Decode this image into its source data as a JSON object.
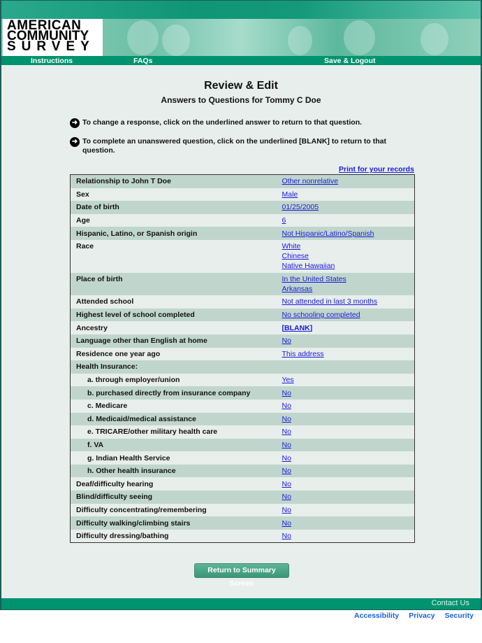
{
  "header": {
    "logo_lines": [
      "AMERICAN",
      "COMMUNITY",
      "SURVEY"
    ],
    "nav": [
      "Instructions",
      "FAQs",
      "Save & Logout"
    ]
  },
  "page": {
    "title": "Review & Edit",
    "subtitle": "Answers to Questions for Tommy C Doe",
    "instructions": [
      "To change a response, click on the underlined answer to return to that question.",
      "To complete an unanswered question, click on the underlined [BLANK] to return to that question."
    ],
    "print_link": "Print for your records"
  },
  "rows": [
    {
      "q": "Relationship to John T Doe",
      "a": [
        "Other nonrelative"
      ]
    },
    {
      "q": "Sex",
      "a": [
        "Male"
      ]
    },
    {
      "q": "Date of birth",
      "a": [
        "01/25/2005"
      ]
    },
    {
      "q": "Age",
      "a": [
        "6"
      ]
    },
    {
      "q": "Hispanic, Latino, or Spanish origin",
      "a": [
        "Not Hispanic/Latino/Spanish"
      ]
    },
    {
      "q": "Race",
      "a": [
        "White",
        "Chinese",
        "Native Hawaiian"
      ]
    },
    {
      "q": "Place of birth",
      "a": [
        "In the United States",
        "Arkansas"
      ]
    },
    {
      "q": "Attended school",
      "a": [
        "Not attended in last 3 months"
      ]
    },
    {
      "q": "Highest level of school completed",
      "a": [
        "No schooling completed"
      ]
    },
    {
      "q": "Ancestry",
      "a": [
        "[BLANK]"
      ],
      "blank": true
    },
    {
      "q": "Language other than English at home",
      "a": [
        "No"
      ]
    },
    {
      "q": "Residence one year ago",
      "a": [
        "This address"
      ]
    },
    {
      "q": "Health Insurance:",
      "a": []
    },
    {
      "q": "a. through employer/union",
      "a": [
        "Yes"
      ],
      "sub": true
    },
    {
      "q": "b. purchased directly from insurance company",
      "a": [
        "No"
      ],
      "sub": true
    },
    {
      "q": "c. Medicare",
      "a": [
        "No"
      ],
      "sub": true
    },
    {
      "q": "d. Medicaid/medical assistance",
      "a": [
        "No"
      ],
      "sub": true
    },
    {
      "q": "e. TRICARE/other military health care",
      "a": [
        "No"
      ],
      "sub": true
    },
    {
      "q": "f. VA",
      "a": [
        "No"
      ],
      "sub": true
    },
    {
      "q": "g. Indian Health Service",
      "a": [
        "No"
      ],
      "sub": true
    },
    {
      "q": "h. Other health insurance",
      "a": [
        "No"
      ],
      "sub": true
    },
    {
      "q": "Deaf/difficulty hearing",
      "a": [
        "No"
      ]
    },
    {
      "q": "Blind/difficulty seeing",
      "a": [
        "No"
      ]
    },
    {
      "q": "Difficulty concentrating/remembering",
      "a": [
        "No"
      ]
    },
    {
      "q": "Difficulty walking/climbing stairs",
      "a": [
        "No"
      ]
    },
    {
      "q": "Difficulty dressing/bathing",
      "a": [
        "No"
      ]
    }
  ],
  "button": "Return to Summary Screen",
  "footer": {
    "contact": "Contact Us",
    "links": [
      "Accessibility",
      "Privacy",
      "Security"
    ]
  },
  "colors": {
    "primary_green": "#00936f",
    "row_shade": "#c0d6cc",
    "link": "#1a1adb"
  }
}
